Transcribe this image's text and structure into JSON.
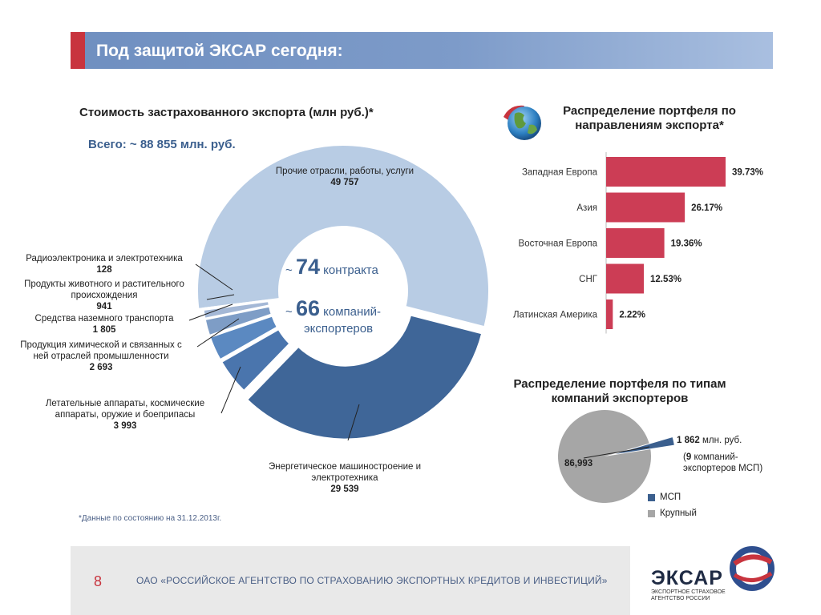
{
  "header": {
    "title": "Под защитой ЭКСАР сегодня:"
  },
  "donut": {
    "title": "Стоимость застрахованного экспорта (млн руб.)",
    "title_star": "*",
    "total": "Всего: ~ 88 855 млн. руб.",
    "center": {
      "contracts_prefix": "~",
      "contracts_num": "74",
      "contracts_text": "контракта",
      "companies_prefix": "~",
      "companies_num": "66",
      "companies_text_1": "компаний-",
      "companies_text_2": "экспортеров"
    },
    "labels": {
      "other_name": "Прочие отрасли, работы, услуги",
      "other_value": "49 757",
      "radio_name": "Радиоэлектроника и электротехника",
      "radio_value": "128",
      "food_name_1": "Продукты животного и растительного",
      "food_name_2": "происхождения",
      "food_value": "941",
      "transport_name": "Средства наземного транспорта",
      "transport_value": "1 805",
      "chem_name_1": "Продукция химической и связанных с",
      "chem_name_2": "ней отраслей промышленности",
      "chem_value": "2 693",
      "aero_name_1": "Летательные аппараты, космические",
      "aero_name_2": "аппараты, оружие и боеприпасы",
      "aero_value": "3 993",
      "energy_name_1": "Энергетическое машиностроение и",
      "energy_name_2": "электротехника",
      "energy_value": "29 539"
    }
  },
  "bar_section": {
    "title_1": "Распределение портфеля по",
    "title_2": "направлениям экспорта",
    "title_star": "*",
    "globe_icon": "globe-icon"
  },
  "pie_section": {
    "title_1": "Распределение портфеля по типам",
    "title_2": "компаний экспортеров",
    "small_value": "1 862",
    "small_unit": "млн. руб.",
    "small_note_open": "(",
    "small_note_num": "9",
    "small_note_1": "компаний-",
    "small_note_2": "экспортеров МСП)",
    "large_value": "86,993",
    "legend_sme": "МСП",
    "legend_large": "Крупный"
  },
  "note": "*Данные по состоянию на 31.12.2013г.",
  "footer": {
    "page_number": "8",
    "org_text": "ОАО «РОССИЙСКОЕ АГЕНТСТВО ПО СТРАХОВАНИЮ ЭКСПОРТНЫХ КРЕДИТОВ И ИНВЕСТИЦИЙ»",
    "logo_text": "ЭКСАР",
    "logo_sub_1": "ЭКСПОРТНОЕ СТРАХОВОЕ",
    "logo_sub_2": "АГЕНТСТВО РОССИИ"
  },
  "colors": {
    "accent_red": "#c8343e",
    "bar_red": "#cc3d55",
    "header_blue": "#7d9bc9",
    "navy": "#3b5f8e"
  },
  "chart_data": [
    {
      "type": "pie",
      "subtype": "donut",
      "title": "Стоимость застрахованного экспорта (млн руб.)",
      "categories": [
        "Прочие отрасли, работы, услуги",
        "Энергетическое машиностроение и электротехника",
        "Летательные аппараты, космические аппараты, оружие и боеприпасы",
        "Продукция химической и связанных с ней отраслей промышленности",
        "Средства наземного транспорта",
        "Продукты животного и растительного происхождения",
        "Радиоэлектроника и электротехника"
      ],
      "values": [
        49757,
        29539,
        3993,
        2693,
        1805,
        941,
        128
      ],
      "colors": [
        "#b8cce4",
        "#3f6698",
        "#4a75ad",
        "#5b89c1",
        "#7e9dc6",
        "#a4b8d6",
        "#c6d4e8"
      ]
    },
    {
      "type": "bar",
      "orientation": "horizontal",
      "title": "Распределение портфеля по направлениям экспорта",
      "categories": [
        "Западная Европа",
        "Азия",
        "Восточная Европа",
        "СНГ",
        "Латинская Америка"
      ],
      "values": [
        39.73,
        26.17,
        19.36,
        12.53,
        2.22
      ],
      "value_labels": [
        "39.73%",
        "26.17%",
        "19.36%",
        "12.53%",
        "2.22%"
      ],
      "color": "#cc3d55"
    },
    {
      "type": "pie",
      "title": "Распределение портфеля по типам компаний экспортеров",
      "categories": [
        "МСП",
        "Крупный"
      ],
      "values": [
        1862,
        86993
      ],
      "colors": [
        "#3b5f8e",
        "#a6a6a6"
      ]
    }
  ]
}
